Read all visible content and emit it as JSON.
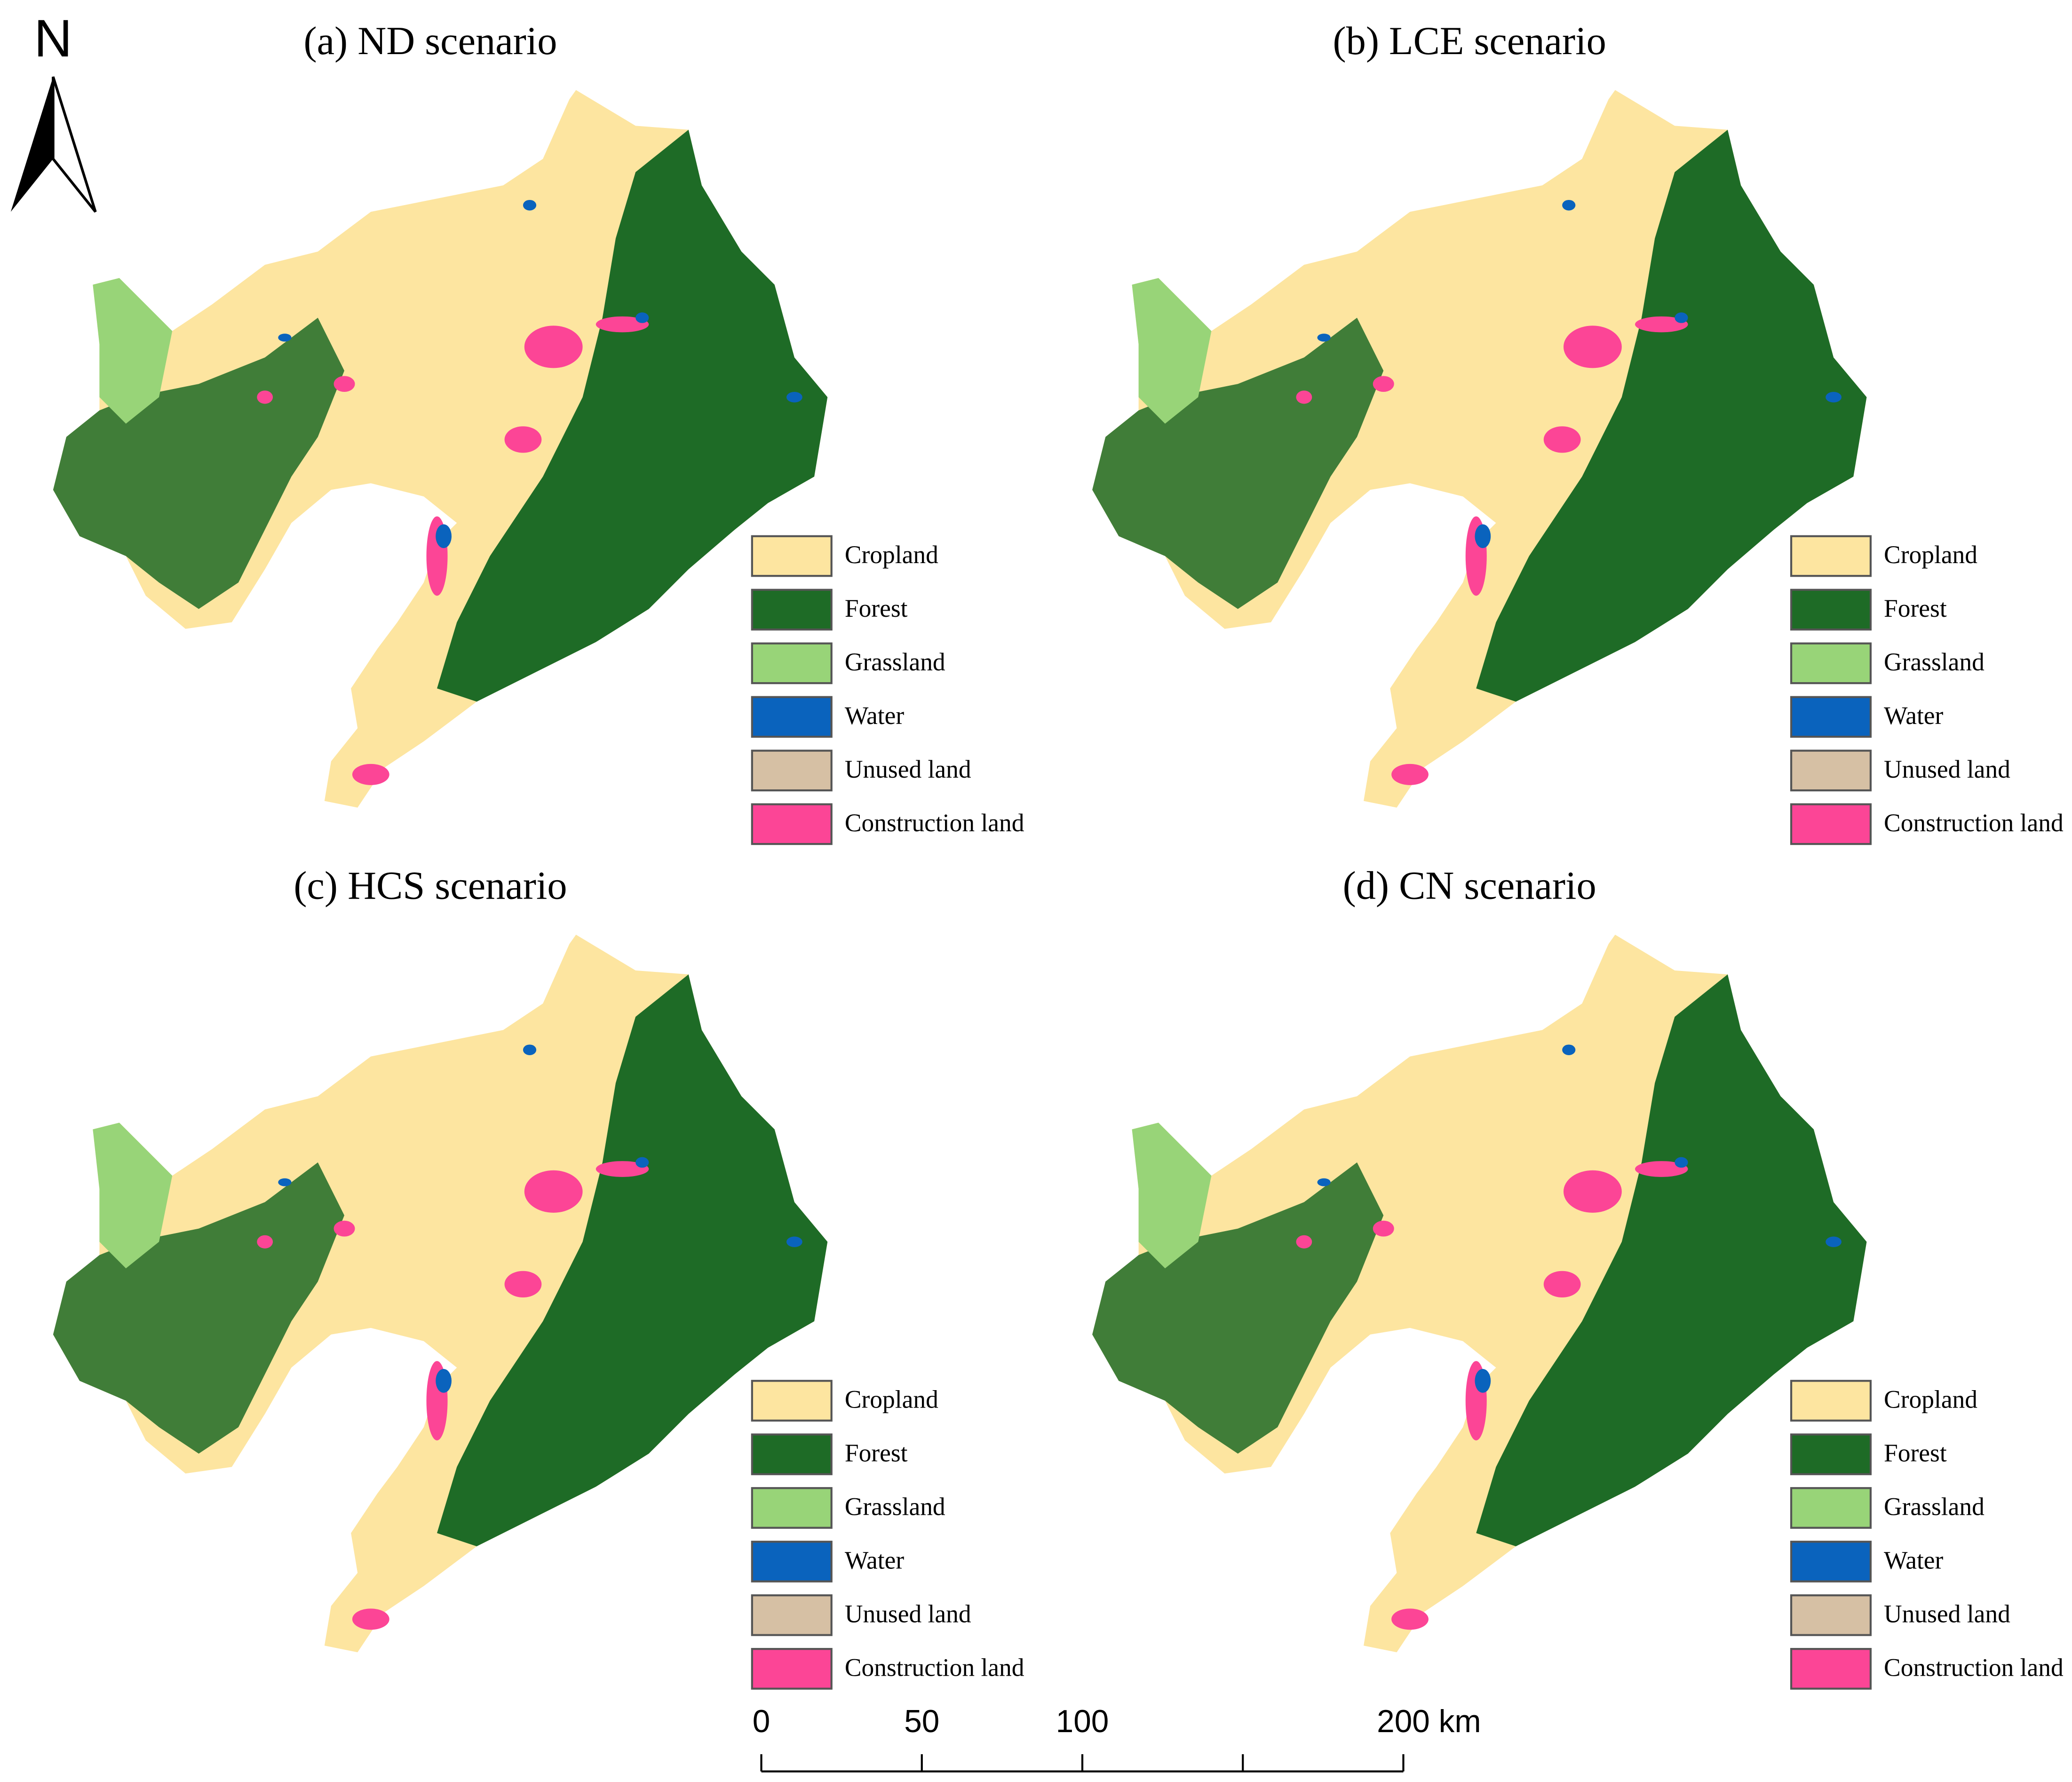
{
  "panels": [
    {
      "title": "(a) ND scenario"
    },
    {
      "title": "(b) LCE scenario"
    },
    {
      "title": "(c) HCS scenario"
    },
    {
      "title": "(d) CN scenario"
    }
  ],
  "legend": {
    "items": [
      {
        "label": "Cropland",
        "color": "#fde5a0"
      },
      {
        "label": "Forest",
        "color": "#1e6b26"
      },
      {
        "label": "Grassland",
        "color": "#98d478"
      },
      {
        "label": "Water",
        "color": "#0a63bd"
      },
      {
        "label": "Unused land",
        "color": "#d6c0a4"
      },
      {
        "label": "Construction land",
        "color": "#fc4596"
      }
    ]
  },
  "north_arrow": {
    "label": "N"
  },
  "scale_bar": {
    "max": 200,
    "marks": [
      0,
      50,
      100,
      150,
      200
    ],
    "labels": [
      0,
      50,
      100,
      {
        "value": 200,
        "label": "200 km"
      }
    ]
  }
}
